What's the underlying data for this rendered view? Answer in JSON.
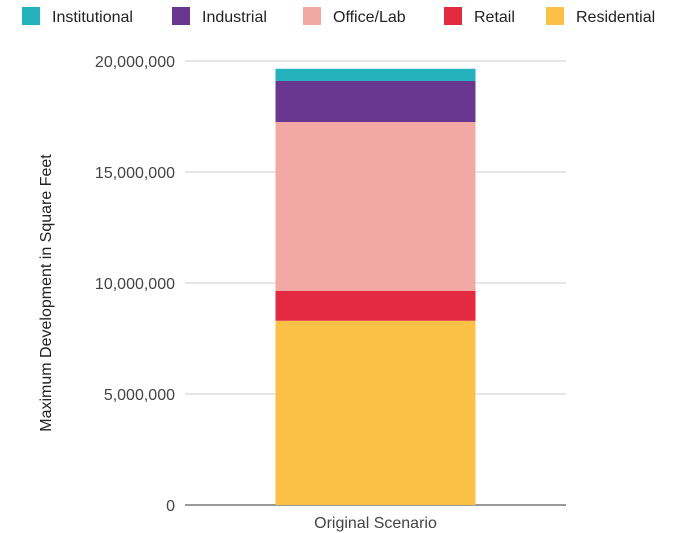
{
  "chart_data": {
    "type": "bar",
    "stacked": true,
    "categories": [
      "Original Scenario"
    ],
    "series": [
      {
        "name": "Residential",
        "color": "#FBC046",
        "values": [
          8300000
        ]
      },
      {
        "name": "Retail",
        "color": "#E42A40",
        "values": [
          1350000
        ]
      },
      {
        "name": "Office/Lab",
        "color": "#F2A8A3",
        "values": [
          7600000
        ]
      },
      {
        "name": "Industrial",
        "color": "#693790",
        "values": [
          1850000
        ]
      },
      {
        "name": "Institutional",
        "color": "#26B2BC",
        "values": [
          550000
        ]
      }
    ],
    "legend_order": [
      "Institutional",
      "Industrial",
      "Office/Lab",
      "Retail",
      "Residential"
    ],
    "legend_position": "top",
    "title": "",
    "xlabel": "",
    "ylabel": "Maximum Development in Square Feet",
    "ylim": [
      0,
      20000000
    ],
    "yticks": [
      {
        "value": 0,
        "label": "0"
      },
      {
        "value": 5000000,
        "label": "5,000,000"
      },
      {
        "value": 10000000,
        "label": "10,000,000"
      },
      {
        "value": 15000000,
        "label": "15,000,000"
      },
      {
        "value": 20000000,
        "label": "20,000,000"
      }
    ],
    "grid": true
  }
}
